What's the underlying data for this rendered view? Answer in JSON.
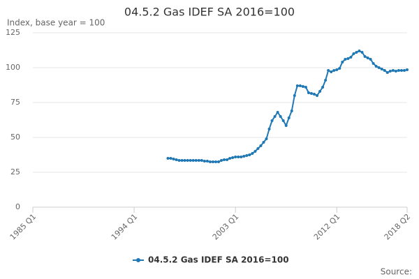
{
  "chart_data": {
    "type": "line",
    "title": "04.5.2 Gas IDEF SA 2016=100",
    "y_label": "Index, base year = 100",
    "source": "Source:",
    "x": [
      1997,
      1997.25,
      1997.5,
      1997.75,
      1998,
      1998.25,
      1998.5,
      1998.75,
      1999,
      1999.25,
      1999.5,
      1999.75,
      2000,
      2000.25,
      2000.5,
      2000.75,
      2001,
      2001.25,
      2001.5,
      2001.75,
      2002,
      2002.25,
      2002.5,
      2002.75,
      2003,
      2003.25,
      2003.5,
      2003.75,
      2004,
      2004.25,
      2004.5,
      2004.75,
      2005,
      2005.25,
      2005.5,
      2005.75,
      2006,
      2006.25,
      2006.5,
      2006.75,
      2007,
      2007.25,
      2007.5,
      2007.75,
      2008,
      2008.25,
      2008.5,
      2008.75,
      2009,
      2009.25,
      2009.5,
      2009.75,
      2010,
      2010.25,
      2010.5,
      2010.75,
      2011,
      2011.25,
      2011.5,
      2011.75,
      2012,
      2012.25,
      2012.5,
      2012.75,
      2013,
      2013.25,
      2013.5,
      2013.75,
      2014,
      2014.25,
      2014.5,
      2014.75,
      2015,
      2015.25,
      2015.5,
      2015.75,
      2016,
      2016.25,
      2016.5,
      2016.75,
      2017,
      2017.25,
      2017.5,
      2017.75,
      2018,
      2018.25
    ],
    "series": [
      {
        "name": "04.5.2 Gas IDEF SA 2016=100",
        "color": "#1f78b4",
        "values": [
          35,
          35,
          34.5,
          34,
          33.5,
          33.5,
          33.5,
          33.5,
          33.5,
          33.5,
          33.5,
          33.5,
          33.5,
          33,
          33,
          32.5,
          32.5,
          32.5,
          32.5,
          33.5,
          34,
          34,
          35,
          35.5,
          36,
          36,
          36,
          36.5,
          37,
          37.5,
          38.5,
          40,
          42,
          44,
          46.5,
          49,
          56,
          62,
          65,
          68,
          65,
          62,
          58.5,
          64,
          69,
          80,
          87,
          87,
          86.5,
          86,
          82,
          81.5,
          81,
          80,
          83,
          86,
          91,
          98,
          97,
          98,
          98.5,
          99.5,
          104,
          106,
          106.5,
          107.5,
          110,
          111,
          112,
          111,
          108,
          107,
          106,
          103,
          101,
          100,
          99,
          98,
          96.5,
          97.5,
          98,
          97.5,
          98,
          98,
          98,
          98.5
        ]
      }
    ],
    "xlim": [
      1985,
      2018.25
    ],
    "xticks": [
      {
        "value": 1985,
        "label": "1985 Q1"
      },
      {
        "value": 1994,
        "label": "1994 Q1"
      },
      {
        "value": 2003,
        "label": "2003 Q1"
      },
      {
        "value": 2012,
        "label": "2012 Q1"
      },
      {
        "value": 2018.25,
        "label": "2018 Q2"
      }
    ],
    "ylim": [
      0,
      125
    ],
    "yticks": [
      0,
      25,
      50,
      75,
      100,
      125
    ],
    "grid": true
  }
}
